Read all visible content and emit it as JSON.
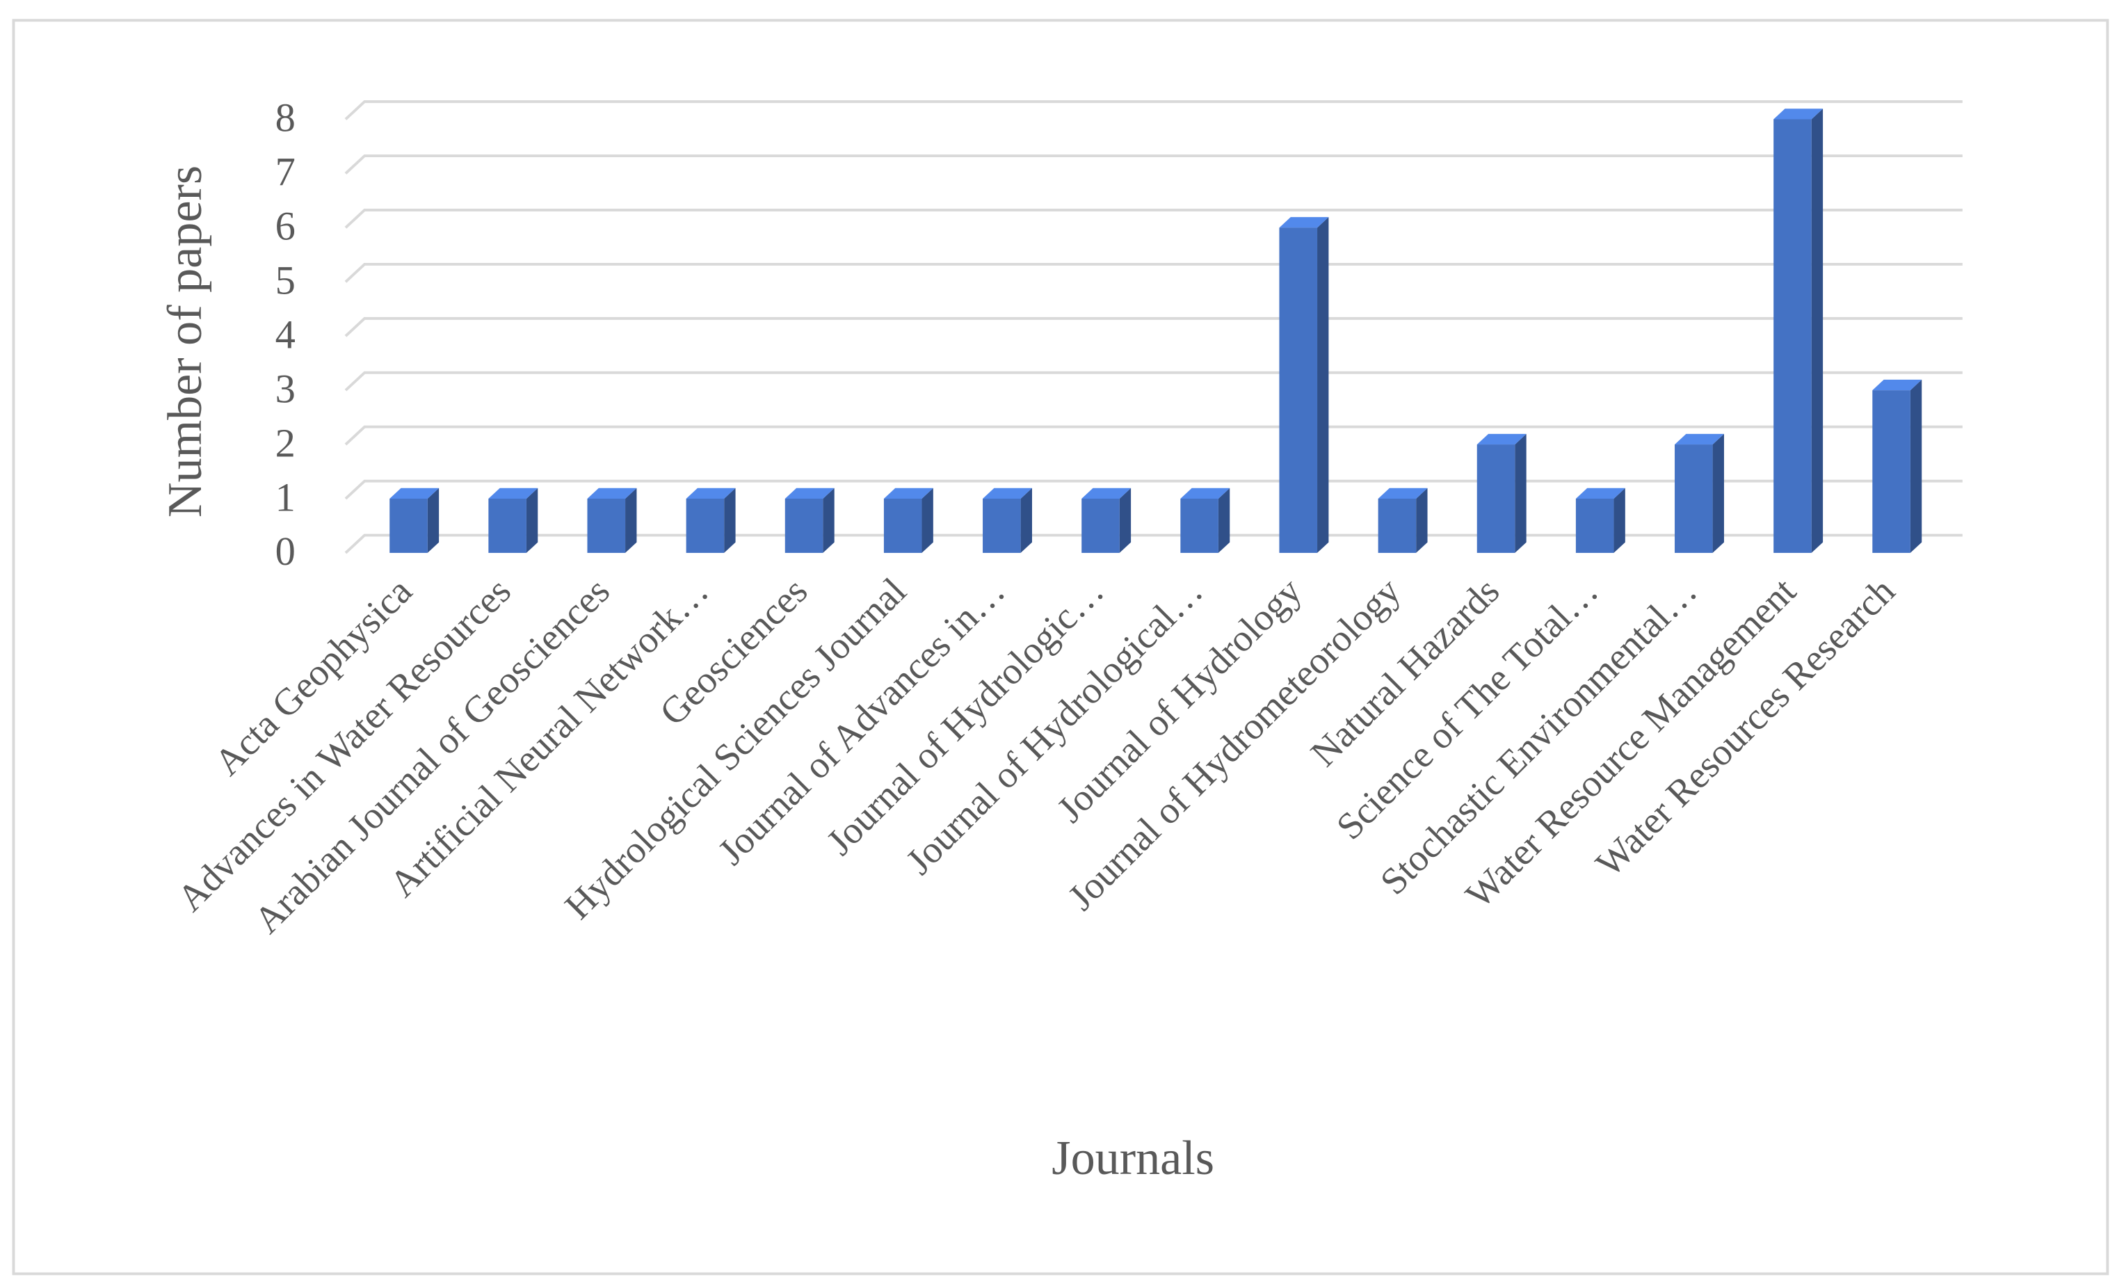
{
  "chart_data": {
    "type": "bar3d",
    "x_label": "Journals",
    "y_label": "Number of papers",
    "categories": [
      "Acta Geophysica",
      "Advances in Water Resources",
      "Arabian Journal of Geosciences",
      "Artificial Neural Network…",
      "Geosciences",
      "Hydrological Sciences Journal",
      "Journal of Advances in…",
      "Journal of Hydrologic…",
      "Journal of Hydrological…",
      "Journal of Hydrology",
      "Journal of Hydrometeorology",
      "Natural Hazards",
      "Science of The Total…",
      "Stochastic Environmental…",
      "Water Resource Management",
      "Water Resources Research"
    ],
    "values": [
      1,
      1,
      1,
      1,
      1,
      1,
      1,
      1,
      1,
      6,
      1,
      2,
      1,
      2,
      8,
      3
    ],
    "color": "#4472c4",
    "ylim": [
      0,
      8
    ],
    "yticks": [
      0,
      1,
      2,
      3,
      4,
      5,
      6,
      7,
      8
    ],
    "grid": true
  }
}
